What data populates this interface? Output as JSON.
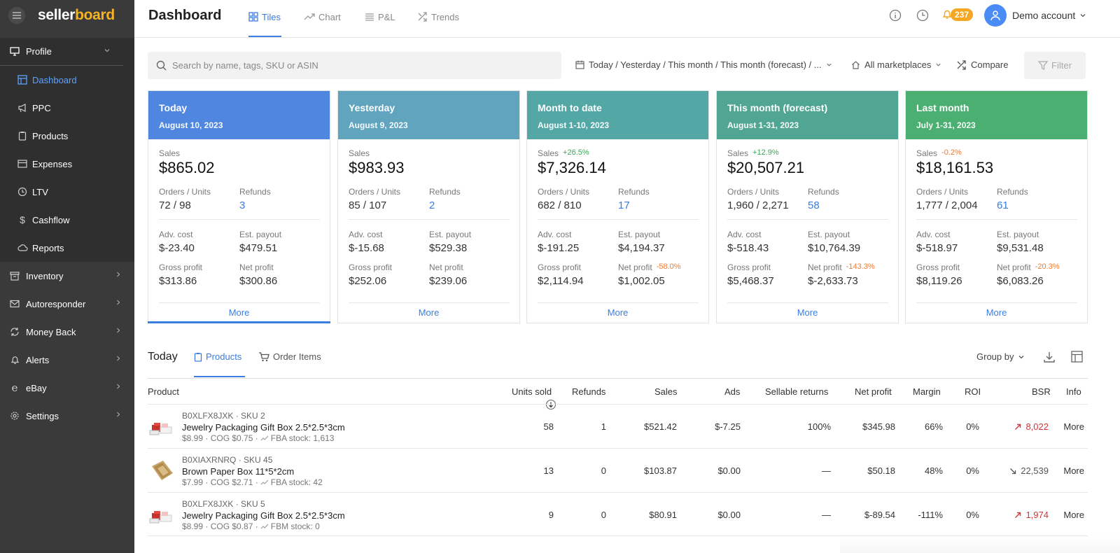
{
  "app": {
    "logo_part1": "seller",
    "logo_part2": "board"
  },
  "sidebar": {
    "profile_label": "Profile",
    "sub_items": [
      {
        "label": "Dashboard",
        "icon": "dashboard-icon",
        "active": true
      },
      {
        "label": "PPC",
        "icon": "megaphone-icon"
      },
      {
        "label": "Products",
        "icon": "clipboard-icon"
      },
      {
        "label": "Expenses",
        "icon": "card-icon"
      },
      {
        "label": "LTV",
        "icon": "clock-icon"
      },
      {
        "label": "Cashflow",
        "icon": "dollar-icon"
      },
      {
        "label": "Reports",
        "icon": "cloud-icon"
      }
    ],
    "sections": [
      {
        "label": "Inventory",
        "icon": "box-icon"
      },
      {
        "label": "Autoresponder",
        "icon": "mail-icon"
      },
      {
        "label": "Money Back",
        "icon": "refresh-icon"
      },
      {
        "label": "Alerts",
        "icon": "bell-icon"
      },
      {
        "label": "eBay",
        "icon": "ebay-icon"
      },
      {
        "label": "Settings",
        "icon": "gear-icon"
      }
    ]
  },
  "header": {
    "title": "Dashboard",
    "tabs": [
      {
        "label": "Tiles",
        "active": true
      },
      {
        "label": "Chart"
      },
      {
        "label": "P&L"
      },
      {
        "label": "Trends"
      }
    ],
    "notification_count": "237",
    "account_name": "Demo account"
  },
  "filters": {
    "search_placeholder": "Search by name, tags, SKU or ASIN",
    "period": "Today / Yesterday / This month / This month (forecast) / ...",
    "marketplaces": "All marketplaces",
    "compare": "Compare",
    "filter": "Filter"
  },
  "tile_labels": {
    "sales": "Sales",
    "orders_units": "Orders / Units",
    "refunds": "Refunds",
    "adv_cost": "Adv. cost",
    "est_payout": "Est. payout",
    "gross_profit": "Gross profit",
    "net_profit": "Net profit",
    "more": "More"
  },
  "tiles": [
    {
      "title": "Today",
      "date": "August 10, 2023",
      "color": "#4f86e0",
      "sales": "$865.02",
      "sales_change": "",
      "orders_units": "72 / 98",
      "refunds": "3",
      "adv_cost": "$-23.40",
      "est_payout": "$479.51",
      "gross_profit": "$313.86",
      "net_profit": "$300.86",
      "net_profit_change": ""
    },
    {
      "title": "Yesterday",
      "date": "August 9, 2023",
      "color": "#60a4bd",
      "sales": "$983.93",
      "sales_change": "",
      "orders_units": "85 / 107",
      "refunds": "2",
      "adv_cost": "$-15.68",
      "est_payout": "$529.38",
      "gross_profit": "$252.06",
      "net_profit": "$239.06",
      "net_profit_change": ""
    },
    {
      "title": "Month to date",
      "date": "August 1-10, 2023",
      "color": "#53a8a6",
      "sales": "$7,326.14",
      "sales_change": "+26.5%",
      "orders_units": "682 / 810",
      "refunds": "17",
      "adv_cost": "$-191.25",
      "est_payout": "$4,194.37",
      "gross_profit": "$2,114.94",
      "net_profit": "$1,002.05",
      "net_profit_change": "-58.0%"
    },
    {
      "title": "This month (forecast)",
      "date": "August 1-31, 2023",
      "color": "#50a692",
      "sales": "$20,507.21",
      "sales_change": "+12.9%",
      "orders_units": "1,960 / 2,271",
      "refunds": "58",
      "adv_cost": "$-518.43",
      "est_payout": "$10,764.39",
      "gross_profit": "$5,468.37",
      "net_profit": "$-2,633.73",
      "net_profit_change": "-143.3%"
    },
    {
      "title": "Last month",
      "date": "July 1-31, 2023",
      "color": "#4caf72",
      "sales": "$18,161.53",
      "sales_change": "-0.2%",
      "orders_units": "1,777 / 2,004",
      "refunds": "61",
      "adv_cost": "$-518.97",
      "est_payout": "$9,531.48",
      "gross_profit": "$8,119.26",
      "net_profit": "$6,083.26",
      "net_profit_change": "-20.3%"
    }
  ],
  "products_section": {
    "title": "Today",
    "tabs": [
      {
        "label": "Products",
        "active": true
      },
      {
        "label": "Order Items"
      }
    ],
    "group_by": "Group by",
    "columns": [
      "Product",
      "Units sold",
      "Refunds",
      "Sales",
      "Ads",
      "Sellable returns",
      "Net profit",
      "Margin",
      "ROI",
      "BSR",
      "Info"
    ],
    "rows": [
      {
        "asin": "B0XLFX8JXK",
        "sku": "SKU 2",
        "name": "Jewelry Packaging Gift Box 2.5*2.5*3cm",
        "price": "$8.99",
        "cog": "COG $0.75",
        "stock": "FBA stock: 1,613",
        "units": "58",
        "refunds": "1",
        "sales": "$521.42",
        "ads": "$-7.25",
        "sellable_returns": "100%",
        "net_profit": "$345.98",
        "margin": "66%",
        "roi": "0%",
        "bsr": "8,022",
        "bsr_trend": "up",
        "info": "More"
      },
      {
        "asin": "B0XIAXRNRQ",
        "sku": "SKU 45",
        "name": "Brown Paper Box 11*5*2cm",
        "price": "$7.99",
        "cog": "COG $2.71",
        "stock": "FBA stock: 42",
        "units": "13",
        "refunds": "0",
        "sales": "$103.87",
        "ads": "$0.00",
        "sellable_returns": "—",
        "net_profit": "$50.18",
        "margin": "48%",
        "roi": "0%",
        "bsr": "22,539",
        "bsr_trend": "down",
        "info": "More"
      },
      {
        "asin": "B0XLFX8JXK",
        "sku": "SKU 5",
        "name": "Jewelry Packaging Gift Box 2.5*2.5*3cm",
        "price": "$8.99",
        "cog": "COG $0.87",
        "stock": "FBM stock: 0",
        "units": "9",
        "refunds": "0",
        "sales": "$80.91",
        "ads": "$0.00",
        "sellable_returns": "—",
        "net_profit": "$-89.54",
        "margin": "-111%",
        "roi": "0%",
        "bsr": "1,974",
        "bsr_trend": "up",
        "info": "More"
      }
    ]
  }
}
